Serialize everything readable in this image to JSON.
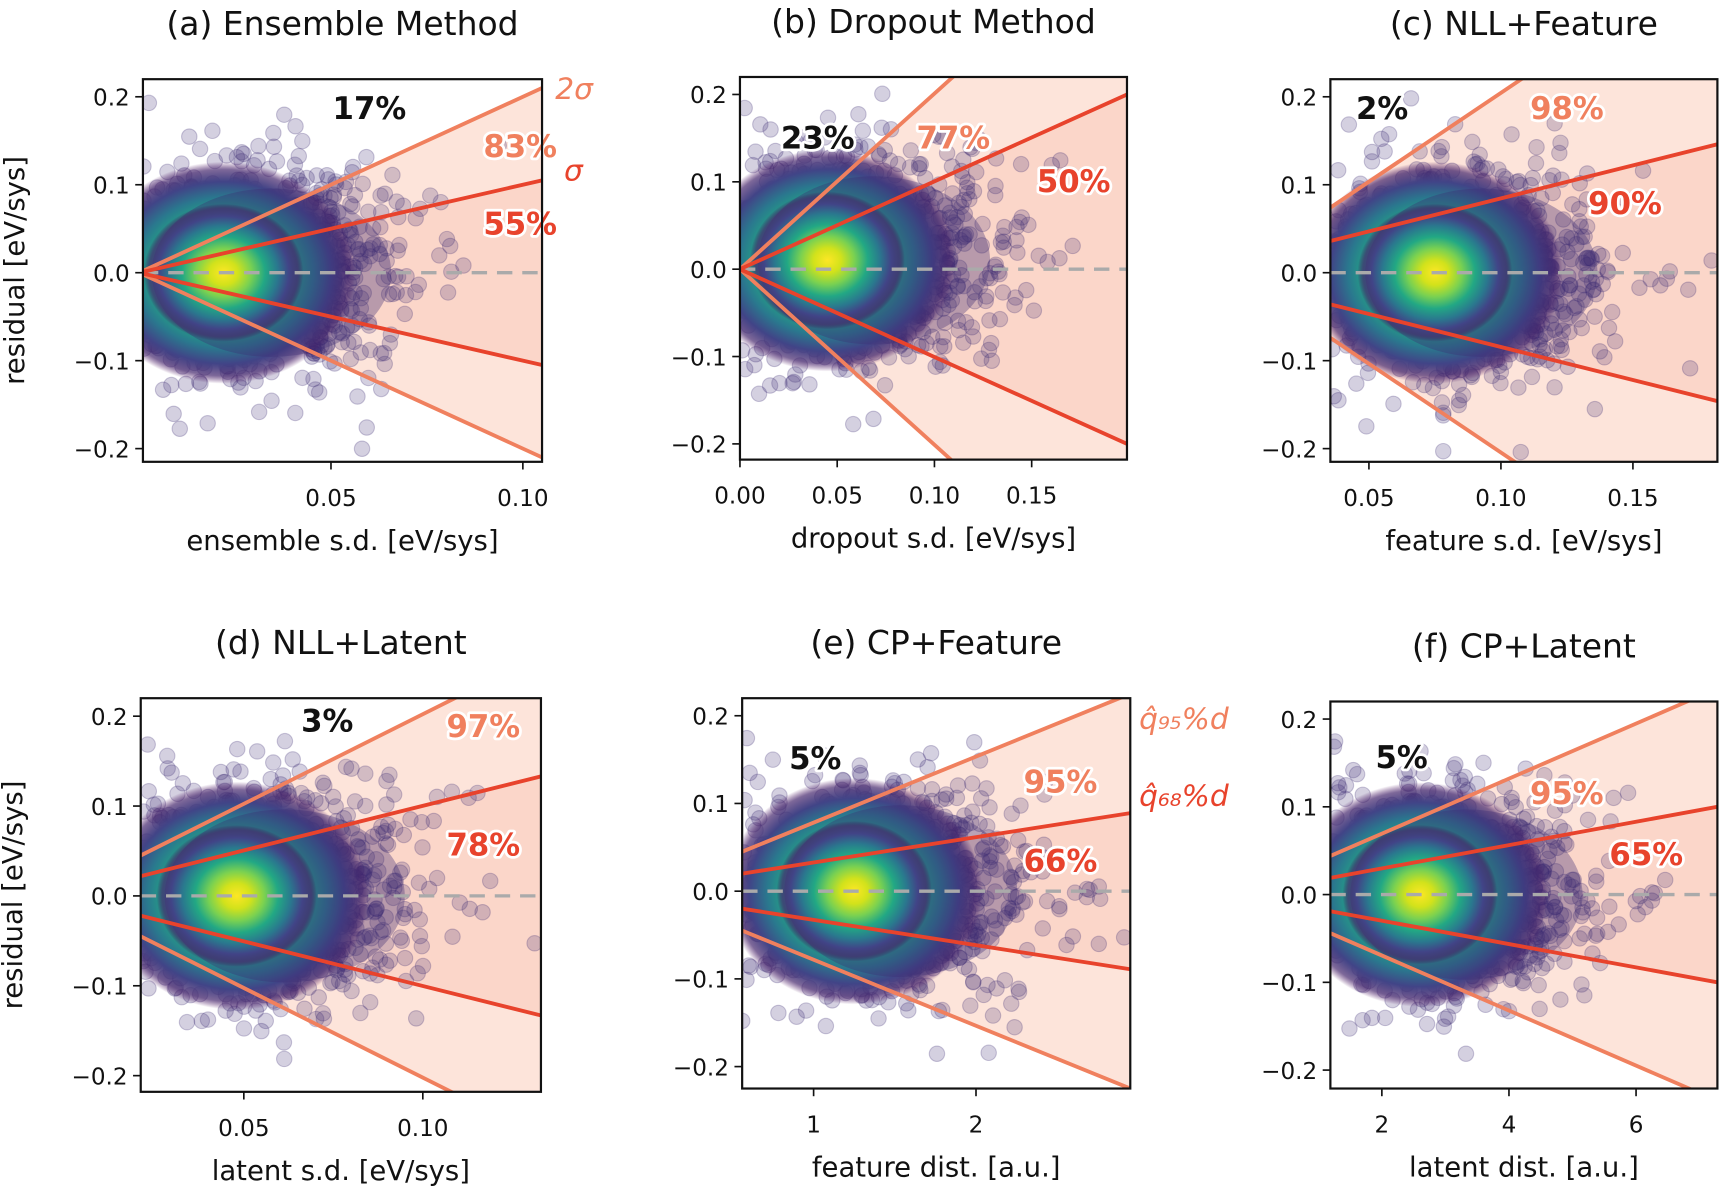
{
  "colors": {
    "sigma2": "#f0805e",
    "sigma1": "#e8432c",
    "fill2": "#fde4da",
    "fill1": "#f9cbbb",
    "points": "#3d2a72",
    "zero_line": "#aaaaaa"
  },
  "chart_data": [
    {
      "type": "scatter",
      "title": "(a) Ensemble Method",
      "xlabel": "ensemble s.d. [eV/sys]",
      "ylabel": "residual [eV/sys]",
      "xlim": [
        0.001,
        0.105
      ],
      "ylim": [
        -0.215,
        0.22
      ],
      "xticks": [
        0.05,
        0.1
      ],
      "xtick_labels": [
        "0.05",
        "0.10"
      ],
      "yticks": [
        0.2,
        0.1,
        0.0,
        -0.1,
        -0.2
      ],
      "ytick_labels": [
        "0.2",
        "0.1",
        "0.0",
        "−0.1",
        "−0.2"
      ],
      "density_peak": [
        0.022,
        0.0
      ],
      "band_1": {
        "x": [
          0.001,
          0.105
        ],
        "upper": [
          0.001,
          0.105
        ]
      },
      "band_2": {
        "x": [
          0.001,
          0.105
        ],
        "upper": [
          0.002,
          0.21
        ]
      },
      "annotations": [
        {
          "text": "17%",
          "kind": "outside"
        },
        {
          "text": "83%",
          "kind": "band_2"
        },
        {
          "text": "55%",
          "kind": "band_1"
        }
      ],
      "band_labels": {
        "band_2": "2σ",
        "band_1": "σ"
      }
    },
    {
      "type": "scatter",
      "title": "(b) Dropout Method",
      "xlabel": "dropout s.d. [eV/sys]",
      "ylabel": "",
      "xlim": [
        0.0,
        0.199
      ],
      "ylim": [
        -0.218,
        0.22
      ],
      "xticks": [
        0.0,
        0.05,
        0.1,
        0.15
      ],
      "xtick_labels": [
        "0.00",
        "0.05",
        "0.10",
        "0.15"
      ],
      "yticks": [
        0.2,
        0.1,
        0.0,
        -0.1,
        -0.2
      ],
      "ytick_labels": [
        "0.2",
        "0.1",
        "0.0",
        "−0.1",
        "−0.2"
      ],
      "density_peak": [
        0.045,
        0.01
      ],
      "band_1": {
        "x": [
          0.0,
          0.199
        ],
        "upper": [
          0.0,
          0.2
        ]
      },
      "band_2": {
        "x": [
          0.0,
          0.199
        ],
        "upper": [
          0.0,
          0.4
        ]
      },
      "annotations": [
        {
          "text": "23%",
          "kind": "outside"
        },
        {
          "text": "77%",
          "kind": "band_2"
        },
        {
          "text": "50%",
          "kind": "band_1"
        }
      ]
    },
    {
      "type": "scatter",
      "title": "(c) NLL+Feature",
      "xlabel": "feature s.d. [eV/sys]",
      "ylabel": "",
      "xlim": [
        0.0354,
        0.182
      ],
      "ylim": [
        -0.215,
        0.22
      ],
      "xticks": [
        0.05,
        0.1,
        0.15
      ],
      "xtick_labels": [
        "0.05",
        "0.10",
        "0.15"
      ],
      "yticks": [
        0.2,
        0.1,
        0.0,
        -0.1,
        -0.2
      ],
      "ytick_labels": [
        "0.2",
        "0.1",
        "0.0",
        "−0.1",
        "−0.2"
      ],
      "density_peak": [
        0.075,
        0.0
      ],
      "band_1": {
        "x": [
          0.0354,
          0.182
        ],
        "upper": [
          0.036,
          0.146
        ]
      },
      "band_2": {
        "x": [
          0.0354,
          0.182
        ],
        "upper": [
          0.074,
          0.37
        ]
      },
      "annotations": [
        {
          "text": "2%",
          "kind": "outside"
        },
        {
          "text": "98%",
          "kind": "band_2"
        },
        {
          "text": "90%",
          "kind": "band_1"
        }
      ]
    },
    {
      "type": "scatter",
      "title": "(d) NLL+Latent",
      "xlabel": "latent s.d. [eV/sys]",
      "ylabel": "residual [eV/sys]",
      "xlim": [
        0.0212,
        0.133
      ],
      "ylim": [
        -0.218,
        0.22
      ],
      "xticks": [
        0.05,
        0.1
      ],
      "xtick_labels": [
        "0.05",
        "0.10"
      ],
      "yticks": [
        0.2,
        0.1,
        0.0,
        -0.1,
        -0.2
      ],
      "ytick_labels": [
        "0.2",
        "0.1",
        "0.0",
        "−0.1",
        "−0.2"
      ],
      "density_peak": [
        0.048,
        0.0
      ],
      "band_1": {
        "x": [
          0.0212,
          0.133
        ],
        "upper": [
          0.022,
          0.133
        ]
      },
      "band_2": {
        "x": [
          0.0212,
          0.133
        ],
        "upper": [
          0.045,
          0.268
        ]
      },
      "annotations": [
        {
          "text": "3%",
          "kind": "outside"
        },
        {
          "text": "97%",
          "kind": "band_2"
        },
        {
          "text": "78%",
          "kind": "band_1"
        }
      ]
    },
    {
      "type": "scatter",
      "title": "(e) CP+Feature",
      "xlabel": "feature dist. [a.u.]",
      "ylabel": "",
      "xlim": [
        0.56,
        2.95
      ],
      "ylim": [
        -0.225,
        0.22
      ],
      "xticks": [
        1,
        2
      ],
      "xtick_labels": [
        "1",
        "2"
      ],
      "yticks": [
        0.2,
        0.1,
        0.0,
        -0.1,
        -0.2
      ],
      "ytick_labels": [
        "0.2",
        "0.1",
        "0.0",
        "−0.1",
        "−0.2"
      ],
      "density_peak": [
        1.25,
        0.0
      ],
      "band_1": {
        "x": [
          0.56,
          2.95
        ],
        "upper": [
          0.02,
          0.089
        ]
      },
      "band_2": {
        "x": [
          0.56,
          2.95
        ],
        "upper": [
          0.045,
          0.225
        ]
      },
      "annotations": [
        {
          "text": "5%",
          "kind": "outside"
        },
        {
          "text": "95%",
          "kind": "band_2"
        },
        {
          "text": "66%",
          "kind": "band_1"
        }
      ],
      "band_labels": {
        "band_2": "q̂₉₅%d",
        "band_1": "q̂₆₈%d"
      }
    },
    {
      "type": "scatter",
      "title": "(f) CP+Latent",
      "xlabel": "latent dist. [a.u.]",
      "ylabel": "",
      "xlim": [
        1.19,
        7.28
      ],
      "ylim": [
        -0.221,
        0.22
      ],
      "xticks": [
        2,
        4,
        6
      ],
      "xtick_labels": [
        "2",
        "4",
        "6"
      ],
      "yticks": [
        0.2,
        0.1,
        0.0,
        -0.1,
        -0.2
      ],
      "ytick_labels": [
        "0.2",
        "0.1",
        "0.0",
        "−0.1",
        "−0.2"
      ],
      "density_peak": [
        2.6,
        0.0
      ],
      "band_1": {
        "x": [
          1.19,
          7.28
        ],
        "upper": [
          0.019,
          0.1
        ]
      },
      "band_2": {
        "x": [
          1.19,
          7.28
        ],
        "upper": [
          0.044,
          0.235
        ]
      },
      "annotations": [
        {
          "text": "5%",
          "kind": "outside"
        },
        {
          "text": "95%",
          "kind": "band_2"
        },
        {
          "text": "65%",
          "kind": "band_1"
        }
      ]
    }
  ]
}
